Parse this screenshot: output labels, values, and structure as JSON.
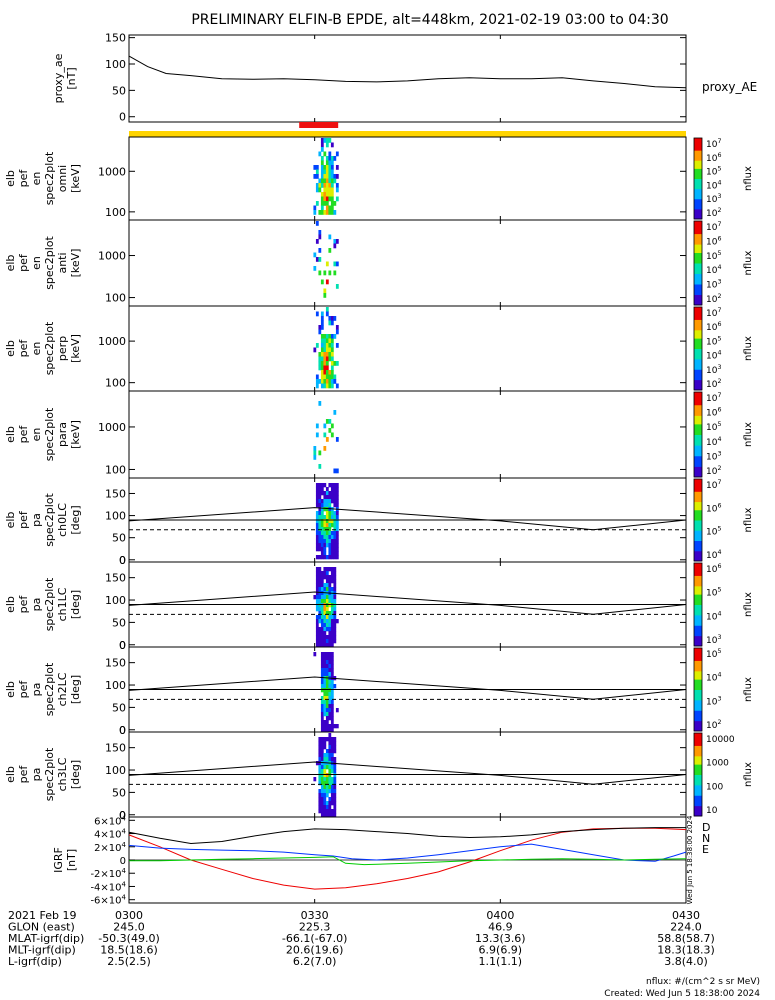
{
  "title": "PRELIMINARY ELFIN-B EPDE, alt=448km, 2021-02-19 03:00 to 04:30",
  "colors": {
    "axis": "#000000",
    "orange_bar": "#ffd400",
    "red_bar": "#ee1111",
    "igrf_x": "#ee0000",
    "igrf_y": "#0033ff",
    "igrf_z": "#00cc00",
    "igrf_total": "#000000"
  },
  "chart_data": [
    {
      "type": "line",
      "id": "proxy_ae",
      "ylabel": [
        "proxy_ae",
        "[nT]"
      ],
      "legend": "proxy_AE",
      "ylim": [
        -10,
        155
      ],
      "yticks": [
        0,
        50,
        100,
        150
      ],
      "x_minutes": [
        0,
        3,
        6,
        10,
        15,
        20,
        25,
        30,
        35,
        40,
        45,
        50,
        55,
        60,
        65,
        70,
        75,
        80,
        85,
        90
      ],
      "y": [
        115,
        95,
        82,
        78,
        72,
        71,
        72,
        70,
        67,
        66,
        68,
        72,
        74,
        72,
        72,
        74,
        68,
        63,
        57,
        55
      ]
    },
    {
      "type": "heatmap",
      "id": "omni",
      "ylabel": [
        "elb",
        "pef",
        "en",
        "spec2plot",
        "omni",
        "[keV]"
      ],
      "yscale": "log",
      "ylim": [
        63,
        7000
      ],
      "yticks": [
        100,
        1000
      ],
      "colorbar": {
        "label": "nflux",
        "ticks": [
          "10^2",
          "10^3",
          "10^4",
          "10^5",
          "10^6",
          "10^7"
        ]
      },
      "data_window_minutes": [
        29.8,
        33.6
      ]
    },
    {
      "type": "heatmap",
      "id": "anti",
      "ylabel": [
        "elb",
        "pef",
        "en",
        "spec2plot",
        "anti",
        "[keV]"
      ],
      "yscale": "log",
      "ylim": [
        63,
        7000
      ],
      "yticks": [
        100,
        1000
      ],
      "colorbar": {
        "label": "nflux",
        "ticks": [
          "10^2",
          "10^3",
          "10^4",
          "10^5",
          "10^6",
          "10^7"
        ]
      },
      "data_window_minutes": [
        29.8,
        33.6
      ]
    },
    {
      "type": "heatmap",
      "id": "perp",
      "ylabel": [
        "elb",
        "pef",
        "en",
        "spec2plot",
        "perp",
        "[keV]"
      ],
      "yscale": "log",
      "ylim": [
        63,
        7000
      ],
      "yticks": [
        100,
        1000
      ],
      "colorbar": {
        "label": "nflux",
        "ticks": [
          "10^2",
          "10^3",
          "10^4",
          "10^5",
          "10^6",
          "10^7"
        ]
      },
      "data_window_minutes": [
        29.8,
        33.6
      ]
    },
    {
      "type": "heatmap",
      "id": "para",
      "ylabel": [
        "elb",
        "pef",
        "en",
        "spec2plot",
        "para",
        "[keV]"
      ],
      "yscale": "log",
      "ylim": [
        63,
        7000
      ],
      "yticks": [
        100,
        1000
      ],
      "colorbar": {
        "label": "nflux",
        "ticks": [
          "10^2",
          "10^3",
          "10^4",
          "10^5",
          "10^6",
          "10^7"
        ]
      },
      "data_window_minutes": [
        29.8,
        33.6
      ]
    },
    {
      "type": "heatmap",
      "id": "ch0LC",
      "ylabel": [
        "elb",
        "pef",
        "pa",
        "spec2plot",
        "ch0LC",
        "[deg]"
      ],
      "ylim": [
        -5,
        185
      ],
      "yticks": [
        0,
        50,
        100,
        150
      ],
      "loss_cone_deg": [
        88,
        118,
        88,
        68,
        90
      ],
      "anti_loss_cone_deg": 68,
      "reference_deg": 90,
      "colorbar": {
        "label": "nflux",
        "ticks": [
          "10^4",
          "10^5",
          "10^6",
          "10^7"
        ]
      },
      "data_window_minutes": [
        29.8,
        33.6
      ]
    },
    {
      "type": "heatmap",
      "id": "ch1LC",
      "ylabel": [
        "elb",
        "pef",
        "pa",
        "spec2plot",
        "ch1LC",
        "[deg]"
      ],
      "ylim": [
        -5,
        185
      ],
      "yticks": [
        0,
        50,
        100,
        150
      ],
      "loss_cone_deg": [
        88,
        118,
        88,
        68,
        90
      ],
      "anti_loss_cone_deg": 68,
      "reference_deg": 90,
      "colorbar": {
        "label": "nflux",
        "ticks": [
          "10^3",
          "10^4",
          "10^5",
          "10^6"
        ]
      },
      "data_window_minutes": [
        29.8,
        33.6
      ]
    },
    {
      "type": "heatmap",
      "id": "ch2LC",
      "ylabel": [
        "elb",
        "pef",
        "pa",
        "spec2plot",
        "ch2LC",
        "[deg]"
      ],
      "ylim": [
        -5,
        185
      ],
      "yticks": [
        0,
        50,
        100,
        150
      ],
      "loss_cone_deg": [
        88,
        118,
        88,
        68,
        90
      ],
      "anti_loss_cone_deg": 68,
      "reference_deg": 90,
      "colorbar": {
        "label": "nflux",
        "ticks": [
          "10^2",
          "10^3",
          "10^4",
          "10^5"
        ]
      },
      "data_window_minutes": [
        29.8,
        33.6
      ]
    },
    {
      "type": "heatmap",
      "id": "ch3LC",
      "ylabel": [
        "elb",
        "pef",
        "pa",
        "spec2plot",
        "ch3LC",
        "[deg]"
      ],
      "ylim": [
        -5,
        185
      ],
      "yticks": [
        0,
        50,
        100,
        150
      ],
      "loss_cone_deg": [
        88,
        118,
        88,
        68,
        90
      ],
      "anti_loss_cone_deg": 68,
      "reference_deg": 90,
      "colorbar": {
        "label": "nflux",
        "ticks": [
          "10",
          "100",
          "1000",
          "10000"
        ]
      },
      "data_window_minutes": [
        29.8,
        33.6
      ]
    },
    {
      "type": "line",
      "id": "igrf",
      "ylabel": [
        "IGRF",
        "[nT]"
      ],
      "ylim": [
        -65000,
        65000
      ],
      "yticks": [
        -60000,
        -40000,
        -20000,
        0,
        20000,
        40000,
        60000
      ],
      "ytick_labels": [
        "-6×10^4",
        "-4×10^4",
        "-2×10^4",
        "0",
        "2×10^4",
        "4×10^4",
        "6×10^4"
      ],
      "legend": [
        "D",
        "N",
        "E"
      ],
      "series": [
        {
          "x_minutes": [
            0,
            5,
            10,
            15,
            20,
            25,
            30,
            35,
            40,
            45,
            50,
            55,
            60,
            65,
            70,
            75,
            80,
            85,
            90
          ],
          "values": [
            38000,
            20000,
            0,
            -14000,
            -28000,
            -38000,
            -44000,
            -42000,
            -36000,
            -28000,
            -18000,
            -3000,
            14000,
            30000,
            42000,
            47000,
            48000,
            48000,
            46000
          ]
        },
        {
          "x_minutes": [
            0,
            5,
            10,
            15,
            20,
            25,
            30,
            33,
            36,
            40,
            45,
            50,
            55,
            60,
            65,
            70,
            75,
            80,
            85,
            88,
            90
          ],
          "values": [
            22000,
            18000,
            16000,
            15000,
            14000,
            12000,
            8000,
            6000,
            2000,
            0,
            3000,
            8000,
            14000,
            20000,
            24000,
            16000,
            8000,
            0,
            -2000,
            6000,
            12000
          ]
        },
        {
          "x_minutes": [
            0,
            5,
            10,
            15,
            20,
            25,
            30,
            33,
            35,
            38,
            45,
            50,
            55,
            60,
            65,
            70,
            75,
            80,
            85,
            90
          ],
          "values": [
            -1000,
            -1000,
            0,
            1000,
            2000,
            3000,
            4000,
            5000,
            -5000,
            -7000,
            -5000,
            -3000,
            -1000,
            0,
            1000,
            2000,
            1000,
            0,
            1000,
            2000
          ]
        },
        {
          "x_minutes": [
            0,
            5,
            10,
            15,
            20,
            25,
            30,
            35,
            40,
            45,
            50,
            55,
            60,
            65,
            70,
            75,
            80,
            85,
            90
          ],
          "values": [
            42000,
            33000,
            25000,
            28000,
            36000,
            43000,
            47000,
            46000,
            43000,
            40000,
            36000,
            34000,
            35000,
            38000,
            43000,
            46000,
            48000,
            49000,
            49000
          ]
        }
      ]
    }
  ],
  "bars": {
    "orange_minutes": [
      0,
      90
    ],
    "red_minutes": [
      27.5,
      33.8
    ]
  },
  "xaxis": {
    "tick_minutes": [
      0,
      30,
      60,
      90
    ],
    "rows": [
      {
        "label": "2021 Feb 19",
        "values": [
          "0300",
          "0330",
          "0400",
          "0430"
        ]
      },
      {
        "label": "GLON (east)",
        "values": [
          "245.0",
          "225.3",
          "46.9",
          "224.0"
        ]
      },
      {
        "label": "MLAT-igrf(dip)",
        "values": [
          "-50.3(49.0)",
          "-66.1(-67.0)",
          "13.3(3.6)",
          "58.8(58.7)"
        ]
      },
      {
        "label": "MLT-igrf(dip)",
        "values": [
          "18.5(18.6)",
          "20.6(19.6)",
          "6.9(6.9)",
          "18.3(18.3)"
        ]
      },
      {
        "label": "L-igrf(dip)",
        "values": [
          "2.5(2.5)",
          "6.2(7.0)",
          "1.1(1.1)",
          "3.8(4.0)"
        ]
      }
    ]
  },
  "footer": {
    "units": "nflux: #/(cm^2 s sr MeV)",
    "created": "Created: Wed Jun  5 18:38:00 2024",
    "vertical_stamp": "Wed Jun  5 18:38:00 2024"
  }
}
